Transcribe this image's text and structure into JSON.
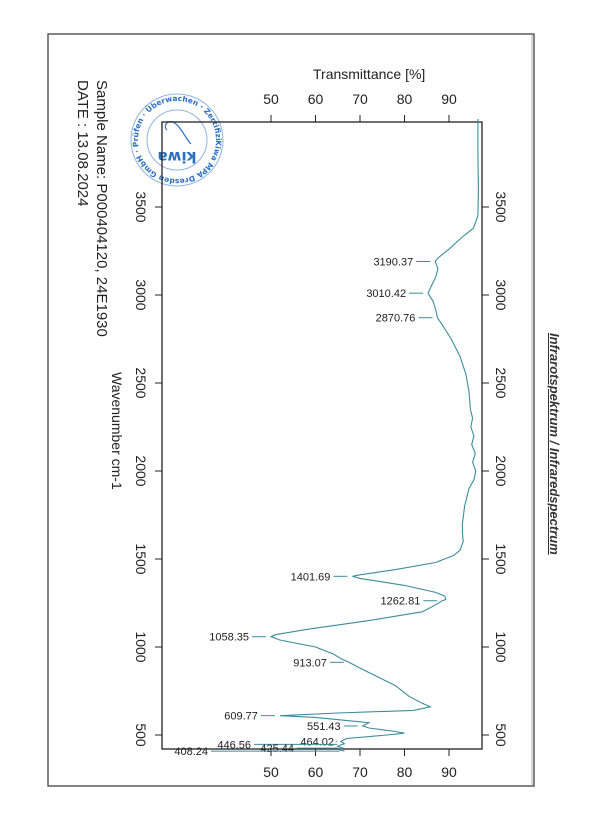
{
  "document": {
    "title": "Infrarotspektrum / Infraredspectrum",
    "sample_name": "Sample Name: P000404120, 24E1930",
    "date": "DATE : 13.08.2024"
  },
  "stamp": {
    "brand": "kiwa",
    "ring_text": "Kiwa MPA Dresden GmbH",
    "ring_text_inner": "Prüfen · Überwachen · Zertifizieren",
    "color": "#2a6fc0"
  },
  "chart_data": {
    "type": "line",
    "title": "Infrarotspektrum / Infraredspectrum",
    "xlabel": "Wavenumber cm-1",
    "ylabel": "Transmittance [%]",
    "orientation": "rotated: wavenumber axis vertical (4000 top), transmittance horizontal",
    "wavenumber_range": [
      4000,
      400
    ],
    "transmittance_range": [
      26,
      97
    ],
    "wavenumber_ticks": [
      "3500",
      "3000",
      "2500",
      "2000",
      "1500",
      "1000",
      "500"
    ],
    "transmittance_ticks": [
      "50",
      "60",
      "70",
      "80",
      "90"
    ],
    "grid": false,
    "series_color": "#3d8c9c",
    "series": [
      {
        "name": "spectrum",
        "points": [
          [
            4000,
            96.5
          ],
          [
            3800,
            96.5
          ],
          [
            3600,
            96.6
          ],
          [
            3450,
            96.5
          ],
          [
            3380,
            95.5
          ],
          [
            3330,
            93
          ],
          [
            3260,
            90
          ],
          [
            3210,
            87.5
          ],
          [
            3190.37,
            86.9
          ],
          [
            3150,
            87.5
          ],
          [
            3100,
            87
          ],
          [
            3050,
            86
          ],
          [
            3010.42,
            85.3
          ],
          [
            2960,
            86.5
          ],
          [
            2900,
            87.2
          ],
          [
            2870.76,
            87.4
          ],
          [
            2830,
            88.5
          ],
          [
            2750,
            90.5
          ],
          [
            2650,
            92.5
          ],
          [
            2550,
            93.8
          ],
          [
            2450,
            94.5
          ],
          [
            2350,
            94.8
          ],
          [
            2300,
            95.3
          ],
          [
            2250,
            94.9
          ],
          [
            2200,
            95.6
          ],
          [
            2150,
            95.1
          ],
          [
            2100,
            95.9
          ],
          [
            2050,
            95.3
          ],
          [
            2000,
            96
          ],
          [
            1950,
            95.6
          ],
          [
            1900,
            94.5
          ],
          [
            1850,
            94
          ],
          [
            1800,
            93.5
          ],
          [
            1700,
            93
          ],
          [
            1650,
            93
          ],
          [
            1600,
            93.2
          ],
          [
            1550,
            92.5
          ],
          [
            1520,
            91
          ],
          [
            1480,
            87
          ],
          [
            1440,
            78
          ],
          [
            1410,
            70
          ],
          [
            1401.69,
            68.3
          ],
          [
            1390,
            70
          ],
          [
            1350,
            80
          ],
          [
            1310,
            87
          ],
          [
            1290,
            89
          ],
          [
            1270,
            89.3
          ],
          [
            1262.81,
            88.5
          ],
          [
            1240,
            87
          ],
          [
            1200,
            84
          ],
          [
            1150,
            72
          ],
          [
            1100,
            58
          ],
          [
            1070,
            51
          ],
          [
            1058.35,
            50
          ],
          [
            1040,
            52
          ],
          [
            1000,
            60
          ],
          [
            960,
            64
          ],
          [
            930,
            66
          ],
          [
            913.07,
            67.5
          ],
          [
            880,
            70
          ],
          [
            830,
            74
          ],
          [
            780,
            78
          ],
          [
            720,
            81
          ],
          [
            680,
            84
          ],
          [
            660,
            85.8
          ],
          [
            640,
            82
          ],
          [
            625,
            65
          ],
          [
            609.77,
            52
          ],
          [
            600,
            60
          ],
          [
            580,
            68
          ],
          [
            570,
            72
          ],
          [
            551.43,
            70.6
          ],
          [
            540,
            72
          ],
          [
            520,
            78
          ],
          [
            510,
            80
          ],
          [
            500,
            76
          ],
          [
            480,
            67
          ],
          [
            464.02,
            65.7
          ],
          [
            450,
            66.5
          ],
          [
            446.56,
            66
          ],
          [
            435,
            65
          ],
          [
            425.44,
            66.2
          ],
          [
            415,
            65.5
          ],
          [
            408.24,
            66.5
          ]
        ]
      }
    ],
    "peak_labels": [
      {
        "text": "3190.37",
        "wn": 3190.37,
        "t": 86.9
      },
      {
        "text": "3010.42",
        "wn": 3010.42,
        "t": 85.3
      },
      {
        "text": "2870.76",
        "wn": 2870.76,
        "t": 87.4
      },
      {
        "text": "1401.69",
        "wn": 1401.69,
        "t": 68.3
      },
      {
        "text": "1262.81",
        "wn": 1262.81,
        "t": 88.5
      },
      {
        "text": "1058.35",
        "wn": 1058.35,
        "t": 50
      },
      {
        "text": "913.07",
        "wn": 913.07,
        "t": 67.5
      },
      {
        "text": "609.77",
        "wn": 609.77,
        "t": 52
      },
      {
        "text": "551.43",
        "wn": 551.43,
        "t": 70.6
      },
      {
        "text": "464.02",
        "wn": 464.02,
        "t": 65.7
      },
      {
        "text": "446.56",
        "wn": 446.56,
        "t": 66
      },
      {
        "text": "425.44",
        "wn": 425.44,
        "t": 66.2
      },
      {
        "text": "408.24",
        "wn": 408.24,
        "t": 66.5
      }
    ]
  }
}
